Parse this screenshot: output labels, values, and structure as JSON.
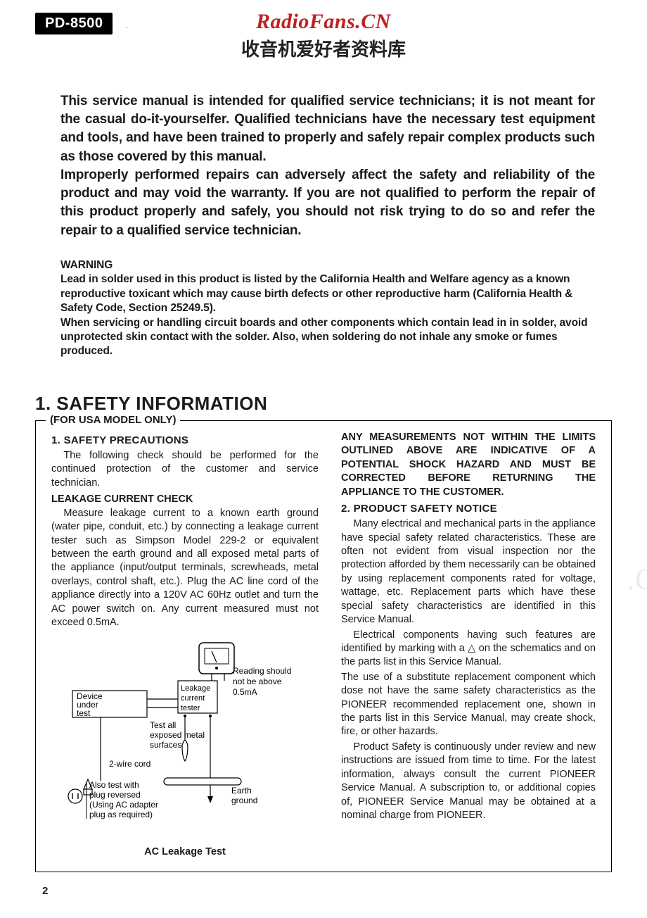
{
  "header": {
    "model": "PD-8500",
    "watermark_line1": "RadioFans.CN",
    "watermark_line2": "收音机爱好者资料库"
  },
  "intro": {
    "p1": "This service manual is intended for qualified service technicians; it is not meant for the casual do-it-yourselfer. Qualified technicians have the necessary test equipment and tools, and have been trained to properly and safely repair complex products such as those covered by this manual.",
    "p2": "Improperly performed repairs can adversely affect the safety and reliability of the product and may void the warranty. If you are not qualified to perform the repair of this product properly and safely, you should not risk trying to do so and refer the repair to a qualified service technician."
  },
  "warning": {
    "title": "WARNING",
    "p1": "Lead in solder used in this product is listed by the California Health and Welfare agency as a known reproductive toxicant which may cause birth defects or other reproductive harm (California Health & Safety Code, Section 25249.5).",
    "p2": "When servicing or handling circuit boards and other components which contain lead in  in solder, avoid unprotected skin contact with the solder. Also, when soldering do not inhale any smoke or fumes produced."
  },
  "section": {
    "title": "1. SAFETY INFORMATION",
    "legend": "(FOR USA MODEL ONLY)"
  },
  "left": {
    "h1": "1. SAFETY PRECAUTIONS",
    "p1": "The following check should be performed for the continued protection of the customer and service technician.",
    "h2": "LEAKAGE CURRENT CHECK",
    "p2": "Measure leakage current to a known earth ground (water pipe, conduit, etc.) by connecting a leakage current tester such as Simpson Model 229-2 or equivalent between the earth ground and all exposed metal parts of the appliance (input/output terminals, screwheads, metal overlays, control shaft, etc.). Plug the AC line cord of the appliance directly into a 120V AC 60Hz outlet and turn the AC power switch on. Any current measured must not exceed 0.5mA."
  },
  "diagram": {
    "device_label": "Device under test",
    "tester_label": "Leakage current tester",
    "reading_label1": "Reading should",
    "reading_label2": "not be above",
    "reading_label3": "0.5mA",
    "test_all1": "Test all",
    "test_all2": "exposed metal",
    "test_all3": "surfaces",
    "cord_label": "2-wire cord",
    "also1": "Also test with",
    "also2": "plug reversed",
    "also3": "(Using AC adapter",
    "also4": "plug as required)",
    "earth1": "Earth",
    "earth2": "ground",
    "caption": "AC Leakage Test",
    "colors": {
      "stroke": "#000000",
      "fill_bg": "#ffffff"
    }
  },
  "right": {
    "bold_para": "ANY MEASUREMENTS NOT WITHIN THE LIMITS OUTLINED ABOVE ARE INDICATIVE OF A POTENTIAL SHOCK HAZARD AND MUST BE CORRECTED BEFORE RETURNING THE APPLIANCE TO THE CUSTOMER.",
    "h1": "2. PRODUCT SAFETY NOTICE",
    "p1": "Many electrical and mechanical parts in the appliance have special safety related characteristics. These are often not evident from visual inspection nor the protection afforded by them necessarily can be obtained by using replacement components rated for voltage, wattage, etc. Replacement parts which have these special safety characteristics are identified in this Service Manual.",
    "p2": "Electrical components having such features are identified by marking with a  △  on the schematics and on the parts list in this Service Manual.",
    "p3": "The use of a substitute replacement component which dose not have the same safety characteristics as the PIONEER recommended replacement one, shown in the parts list in this Service Manual, may create shock, fire, or other hazards.",
    "p4": "Product Safety is continuously under review and new instructions are issued from time to time. For the latest information, always consult the current PIONEER Service Manual. A subscription to, or additional copies of, PIONEER Service Manual may be obtained at a nominal charge from PIONEER."
  },
  "page_number": "2",
  "faint_watermark": ".C"
}
